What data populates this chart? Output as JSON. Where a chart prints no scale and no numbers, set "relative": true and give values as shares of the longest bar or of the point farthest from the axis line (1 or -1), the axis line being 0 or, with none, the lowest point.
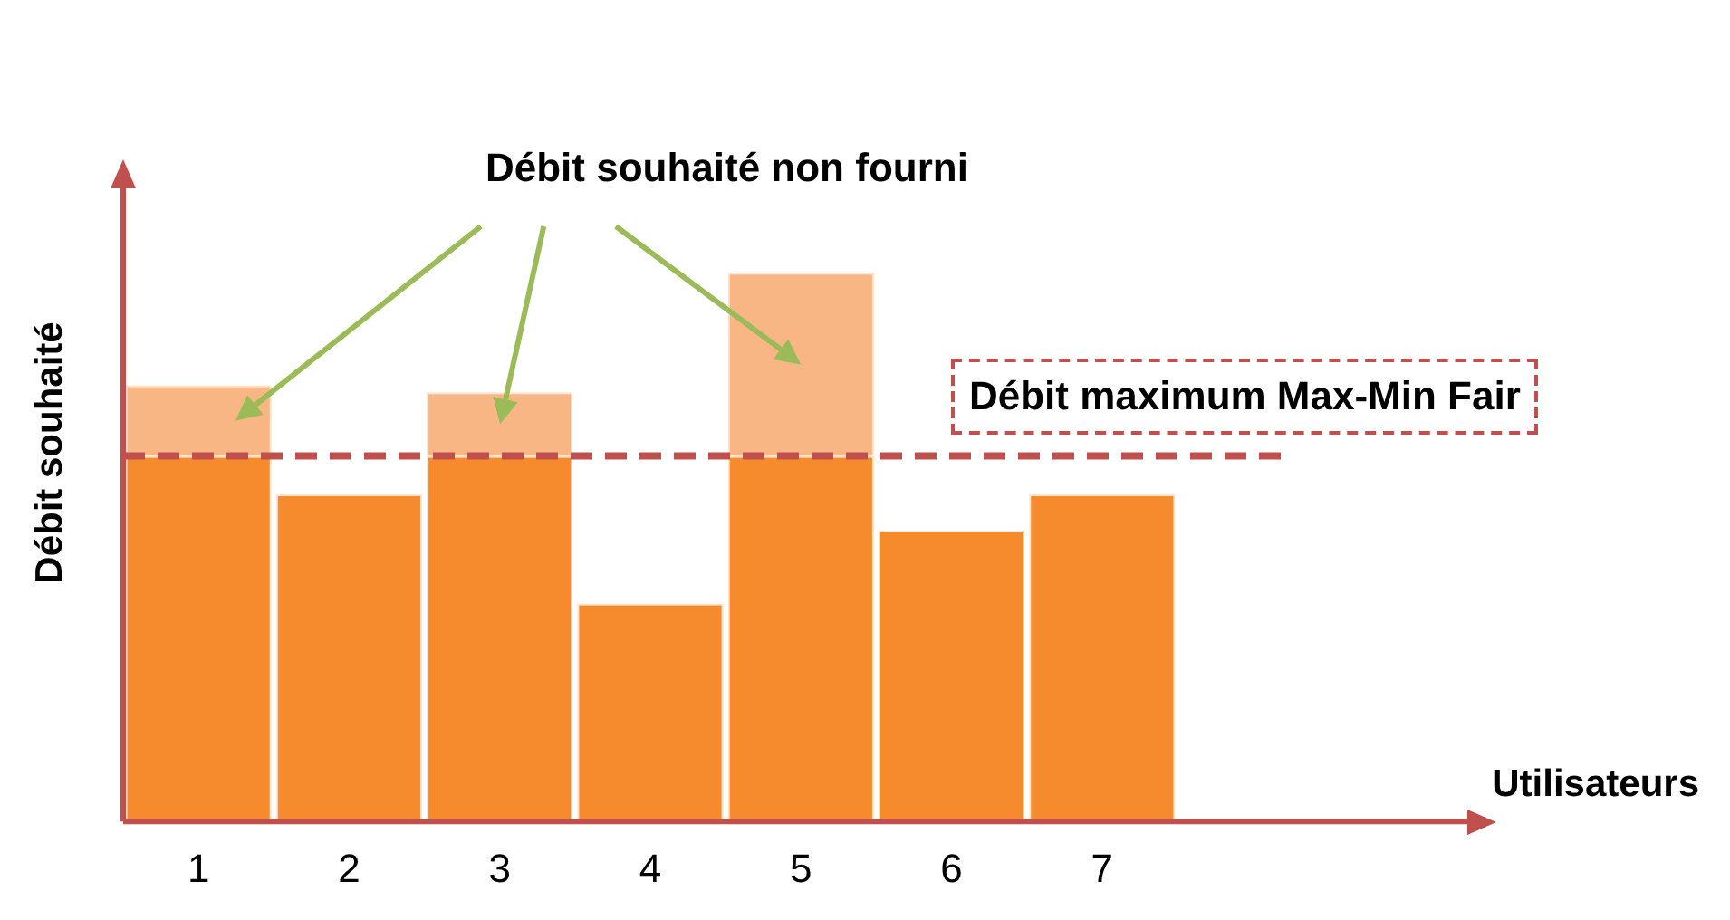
{
  "chart_data": {
    "type": "bar",
    "stacked": true,
    "relative": true,
    "ylabel": "Débit souhaité",
    "categories": [
      "1",
      "2",
      "3",
      "4",
      "5",
      "6",
      "7"
    ],
    "series": [
      {
        "color": "#f58b2c",
        "values": [
          0.666,
          0.596,
          0.666,
          0.397,
          0.666,
          0.53,
          0.596
        ]
      },
      {
        "color": "#f8b684",
        "values": [
          0.129,
          null,
          0.116,
          null,
          0.334,
          null,
          null
        ]
      }
    ],
    "ref_lines": [
      {
        "axis": "y",
        "value": 0.666,
        "label": "Débit maximum Max-Min Fair",
        "color": "#c0504d",
        "line_style": "dashed"
      }
    ],
    "annotations": [
      "Débit souhaité non fourni",
      "Utilisateurs"
    ],
    "grid": false,
    "legend": false,
    "tick_labels": "x"
  }
}
